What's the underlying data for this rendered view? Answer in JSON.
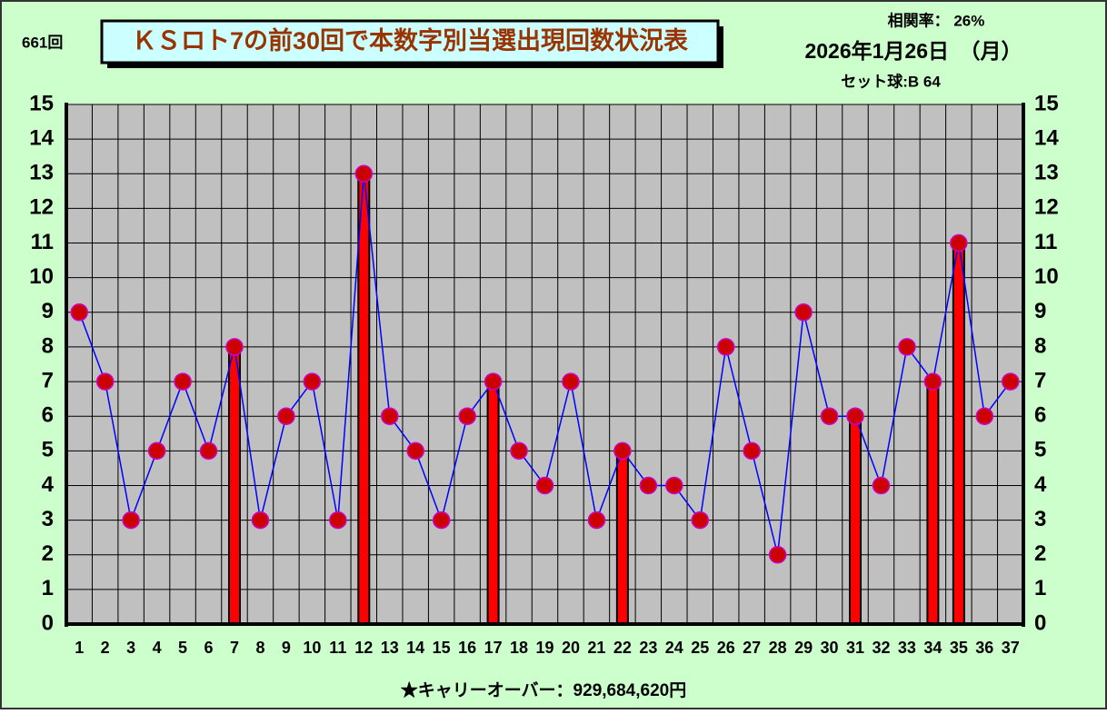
{
  "chart_data": {
    "type": "combo",
    "title": "ＫＳロト7の前30回で本数字別当選出現回数状況表",
    "round": "661回",
    "correlation": "相関率：  26%",
    "date": "2026年1月26日　（月）",
    "set_ball": "セット球:B  64",
    "carryover": "★キャリーオーバー：929,684,620円",
    "categories": [
      "1",
      "2",
      "3",
      "4",
      "5",
      "6",
      "7",
      "8",
      "9",
      "10",
      "11",
      "12",
      "13",
      "14",
      "15",
      "16",
      "17",
      "18",
      "19",
      "20",
      "21",
      "22",
      "23",
      "24",
      "25",
      "26",
      "27",
      "28",
      "29",
      "30",
      "31",
      "32",
      "33",
      "34",
      "35",
      "36",
      "37"
    ],
    "series": [
      {
        "type": "line",
        "color": "#0000ff",
        "marker_color": "#cc0000",
        "values": [
          9,
          7,
          3,
          5,
          7,
          5,
          8,
          3,
          6,
          7,
          3,
          13,
          6,
          5,
          3,
          6,
          7,
          5,
          4,
          7,
          3,
          5,
          4,
          4,
          3,
          8,
          5,
          2,
          9,
          6,
          6,
          4,
          8,
          7,
          11,
          6,
          7
        ]
      },
      {
        "type": "bar",
        "color": "#ff0000",
        "values": [
          null,
          null,
          null,
          null,
          null,
          null,
          8,
          null,
          null,
          null,
          null,
          13,
          null,
          null,
          null,
          null,
          7,
          null,
          null,
          null,
          null,
          5,
          null,
          null,
          null,
          null,
          null,
          null,
          null,
          null,
          6,
          null,
          null,
          7,
          11,
          null,
          null
        ]
      }
    ],
    "ylim": [
      0,
      15
    ],
    "yticks": [
      0,
      1,
      2,
      3,
      4,
      5,
      6,
      7,
      8,
      9,
      10,
      11,
      12,
      13,
      14,
      15
    ],
    "grid": true
  }
}
